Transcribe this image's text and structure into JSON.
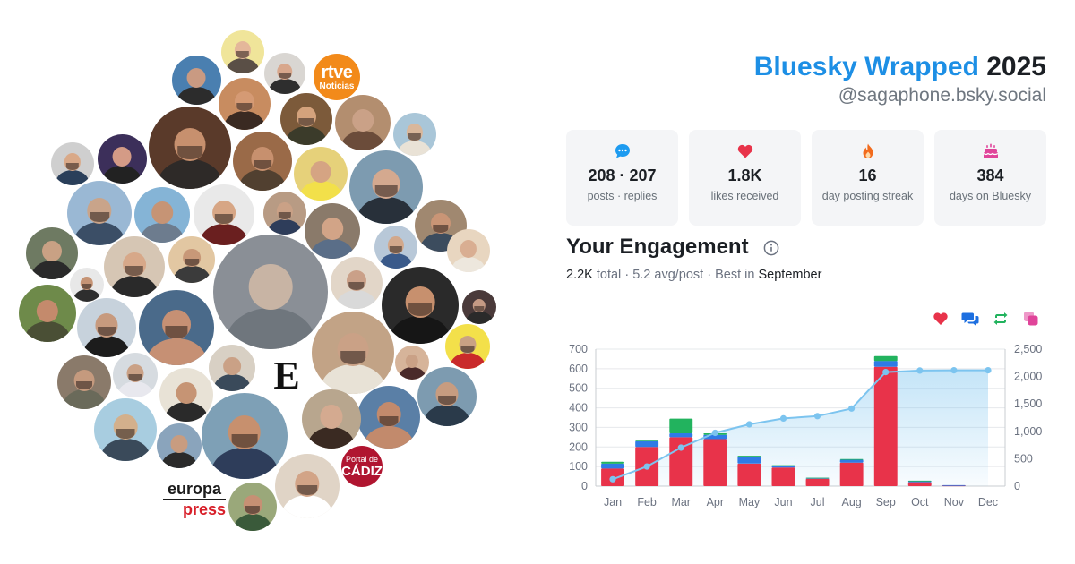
{
  "header": {
    "title_brand": "Bluesky Wrapped",
    "title_year": "2025",
    "handle": "@sagaphone.bsky.social"
  },
  "avatar_cloud": {
    "brand_logos": {
      "rtve_line1": "rtve",
      "rtve_line2": "Noticias",
      "el_espanol": "E",
      "europa_line1": "europa",
      "europa_line2": "press",
      "cadiz_line1": "Portal de",
      "cadiz_line2": "CÁDIZ"
    }
  },
  "stats": [
    {
      "icon": "speech-bubble-icon",
      "value": "208 · 207",
      "label": "posts · replies",
      "color": "#1d9bf0"
    },
    {
      "icon": "heart-icon",
      "value": "1.8K",
      "label": "likes received",
      "color": "#e8334a"
    },
    {
      "icon": "flame-icon",
      "value": "16",
      "label": "day posting streak",
      "color": "#f26b1d"
    },
    {
      "icon": "cake-icon",
      "value": "384",
      "label": "days on Bluesky",
      "color": "#e0449a"
    }
  ],
  "engagement": {
    "title": "Your Engagement",
    "total": "2.2K",
    "total_word": "total",
    "sep1": "·",
    "avg": "5.2 avg/post",
    "sep2": "·",
    "best_prefix": "Best in",
    "best_month": "September",
    "legend_icons": [
      {
        "icon": "heart-icon",
        "color": "#e8334a"
      },
      {
        "icon": "reply-icon",
        "color": "#1d6fe0"
      },
      {
        "icon": "repost-icon",
        "color": "#22b35e"
      },
      {
        "icon": "quote-icon",
        "color": "#e0449a"
      }
    ]
  },
  "chart_data": {
    "type": "bar",
    "categories": [
      "Jan",
      "Feb",
      "Mar",
      "Apr",
      "May",
      "Jun",
      "Jul",
      "Aug",
      "Sep",
      "Oct",
      "Nov",
      "Dec"
    ],
    "series": [
      {
        "values": [
          90,
          200,
          250,
          240,
          115,
          95,
          38,
          120,
          610,
          20,
          3,
          0
        ],
        "color": "#e8334a",
        "stack": "main"
      },
      {
        "values": [
          25,
          30,
          20,
          22,
          35,
          10,
          4,
          15,
          30,
          6,
          2,
          0
        ],
        "color": "#2f7be6",
        "stack": "main"
      },
      {
        "values": [
          10,
          3,
          75,
          8,
          5,
          2,
          1,
          3,
          25,
          2,
          0,
          0
        ],
        "color": "#22b35e",
        "stack": "main"
      }
    ],
    "cumulative": {
      "values": [
        125,
        358,
        703,
        973,
        1128,
        1235,
        1278,
        1416,
        2081,
        2109,
        2114,
        2114
      ],
      "color": "#7cc4ef"
    },
    "y_left": {
      "min": 0,
      "max": 700,
      "ticks": [
        "0",
        "100",
        "200",
        "300",
        "400",
        "500",
        "600",
        "700"
      ]
    },
    "y_right": {
      "min": 0,
      "max": 2500,
      "ticks": [
        "0",
        "500",
        "1,000",
        "1,500",
        "2,000",
        "2,500"
      ]
    },
    "grid": true
  }
}
